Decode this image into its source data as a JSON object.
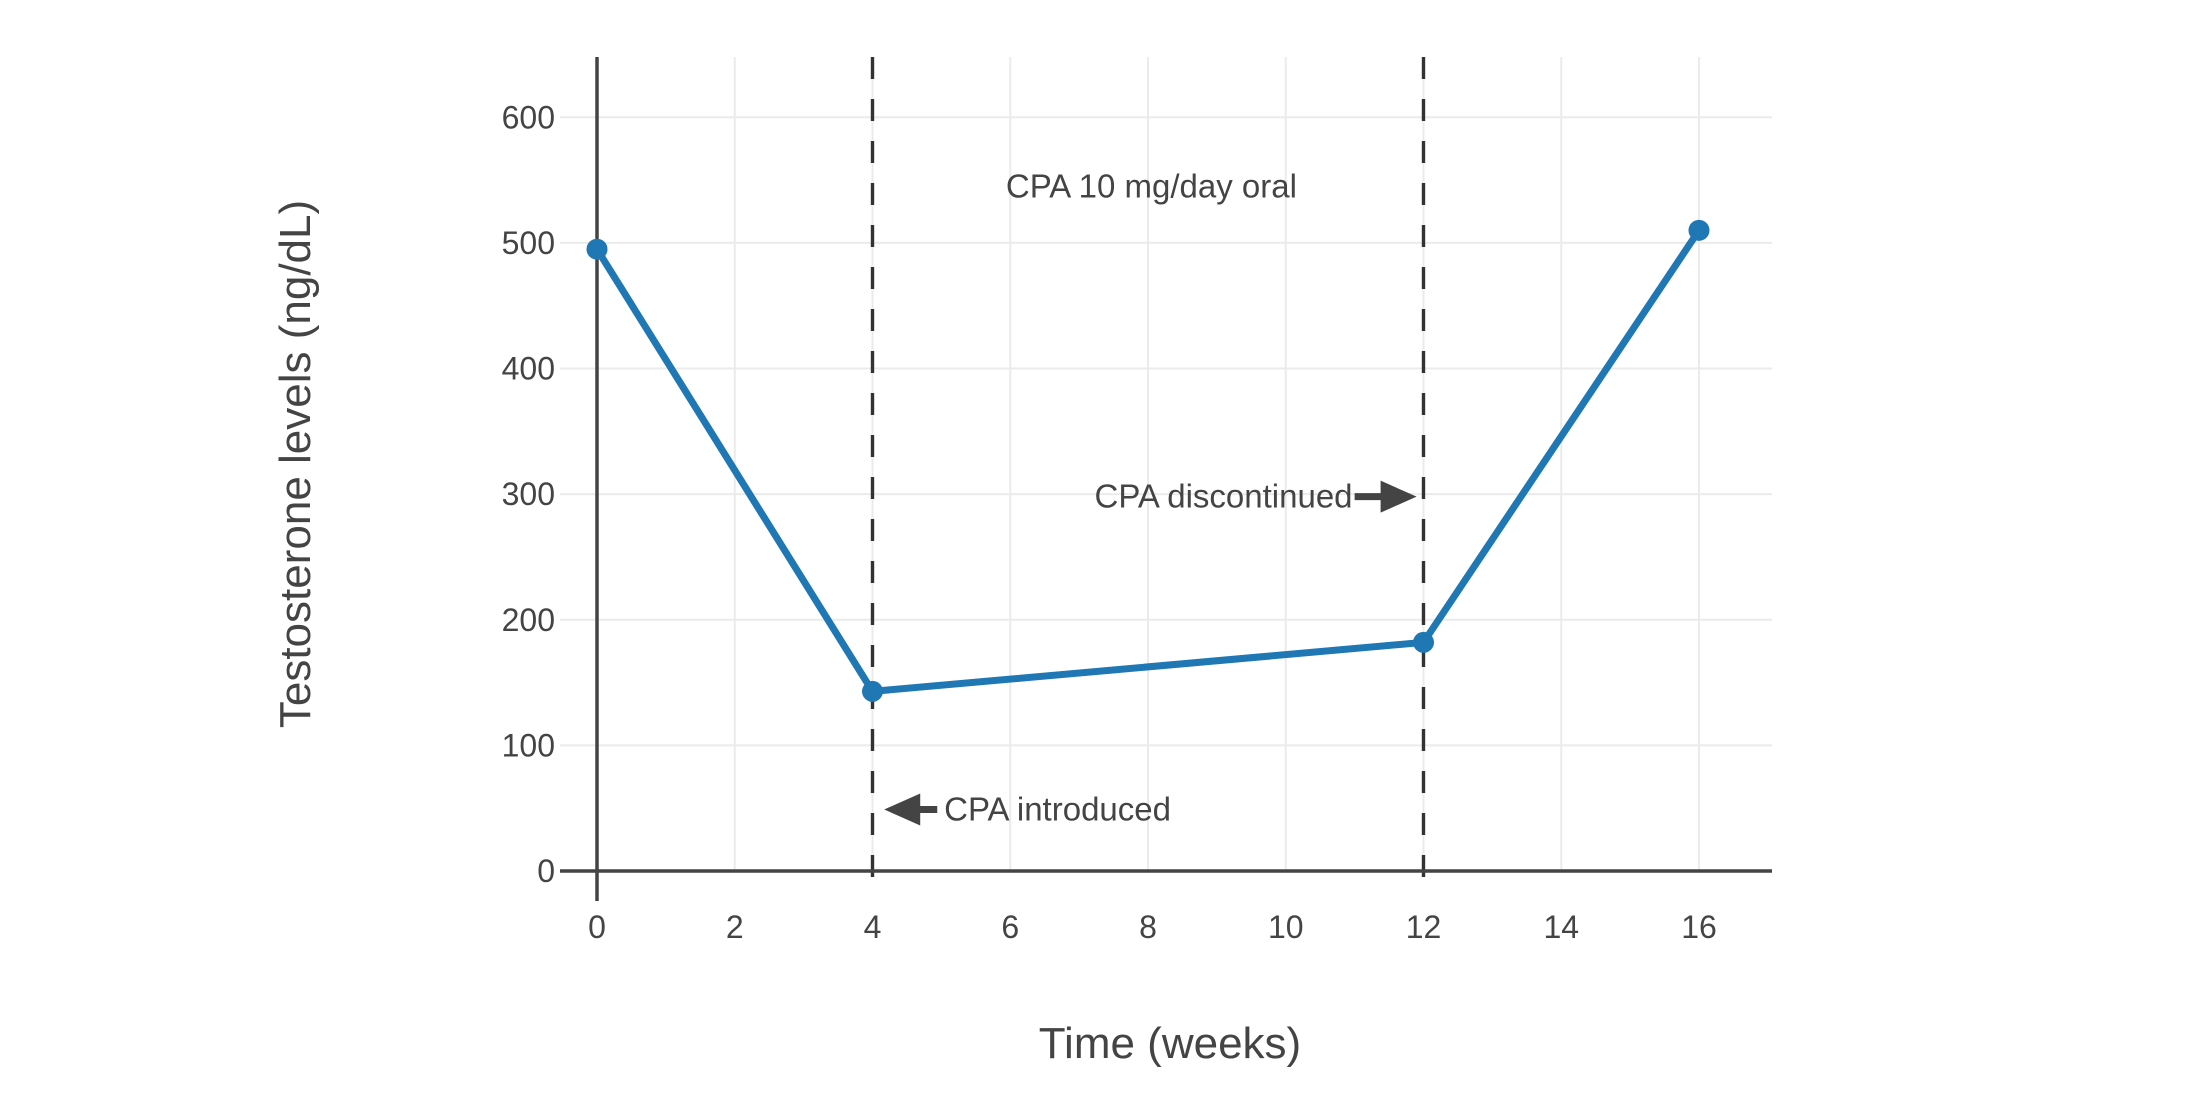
{
  "figure": {
    "background": "#ffffff"
  },
  "chart_data": {
    "type": "line",
    "title": "",
    "xlabel": "Time (weeks)",
    "ylabel": "Testosterone levels (ng/dL)",
    "x": [
      0,
      4,
      12,
      16
    ],
    "series": [
      {
        "name": "Testosterone levels",
        "values": [
          495,
          143,
          182,
          510
        ],
        "color": "#1f77b4",
        "marker": "circle"
      }
    ],
    "xlim": [
      0,
      17.06
    ],
    "ylim": [
      0,
      648
    ],
    "xticks": [
      0,
      2,
      4,
      6,
      8,
      10,
      12,
      14,
      16
    ],
    "yticks": [
      0,
      100,
      200,
      300,
      400,
      500,
      600
    ],
    "grid": true,
    "legend_position": "none",
    "colors": {
      "grid": "#ebebeb",
      "axis": "#444444",
      "text": "#444444",
      "vline": "#333333"
    },
    "vlines": [
      {
        "x": 4,
        "style": "dashed"
      },
      {
        "x": 12,
        "style": "dashed"
      }
    ],
    "annotations": [
      {
        "id": "drug-period-label",
        "text": "CPA 10 mg/day oral",
        "x": 8.05,
        "y": 545,
        "anchor": "middle",
        "arrow": null
      },
      {
        "id": "cpa-discontinued-label",
        "text": "CPA discontinued",
        "x": 10.97,
        "y": 298,
        "anchor": "end",
        "arrow": {
          "dir": "right",
          "x_tail": 11.0,
          "x_tip": 11.9,
          "y": 298
        }
      },
      {
        "id": "cpa-introduced-label",
        "text": "CPA introduced",
        "x": 5.04,
        "y": 49,
        "anchor": "start",
        "arrow": {
          "dir": "left",
          "x_tail": 4.94,
          "x_tip": 4.17,
          "y": 49
        }
      }
    ]
  }
}
